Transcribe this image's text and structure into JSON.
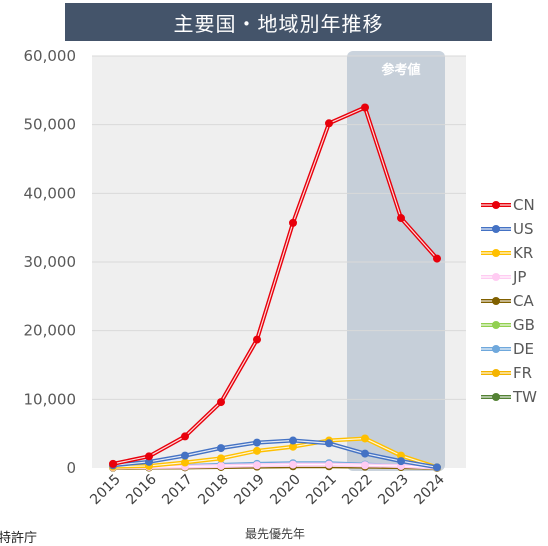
{
  "title": "主要国・地域別年推移",
  "footer_text": "特許庁",
  "chart_data": {
    "type": "line",
    "title": "主要国・地域別年推移",
    "xlabel": "最先優先年",
    "ylabel": "",
    "categories": [
      "2015",
      "2016",
      "2017",
      "2018",
      "2019",
      "2020",
      "2021",
      "2022",
      "2023",
      "2024"
    ],
    "ylim": [
      0,
      60000
    ],
    "yticks": [
      0,
      10000,
      20000,
      30000,
      40000,
      50000,
      60000
    ],
    "ytick_labels": [
      "0",
      "10,000",
      "20,000",
      "30,000",
      "40,000",
      "50,000",
      "60,000"
    ],
    "grid": true,
    "legend_position": "right",
    "reference_region": {
      "label": "参考値",
      "from": "2022",
      "to": "2024"
    },
    "series": [
      {
        "name": "CN",
        "color": "#e8000b",
        "values": [
          600,
          1700,
          4600,
          9600,
          18700,
          35700,
          50200,
          52500,
          36400,
          30500
        ]
      },
      {
        "name": "US",
        "color": "#4472c4",
        "values": [
          400,
          900,
          1800,
          2900,
          3700,
          4000,
          3600,
          2100,
          1000,
          100
        ]
      },
      {
        "name": "KR",
        "color": "#ffc000",
        "values": [
          200,
          300,
          800,
          1400,
          2500,
          3100,
          4000,
          4300,
          1800,
          100
        ]
      },
      {
        "name": "JP",
        "color": "#ffccf2",
        "values": [
          100,
          150,
          200,
          300,
          400,
          500,
          500,
          400,
          300,
          50
        ]
      },
      {
        "name": "CA",
        "color": "#806000",
        "values": [
          50,
          80,
          100,
          150,
          200,
          250,
          250,
          200,
          150,
          20
        ]
      },
      {
        "name": "GB",
        "color": "#92d050",
        "values": [
          80,
          100,
          150,
          200,
          300,
          350,
          350,
          300,
          200,
          30
        ]
      },
      {
        "name": "DE",
        "color": "#6fa8dc",
        "values": [
          150,
          200,
          300,
          450,
          600,
          700,
          700,
          500,
          300,
          50
        ]
      },
      {
        "name": "FR",
        "color": "#f4b400",
        "values": [
          50,
          80,
          120,
          180,
          250,
          300,
          300,
          250,
          150,
          20
        ]
      },
      {
        "name": "TW",
        "color": "#548235",
        "values": [
          50,
          80,
          120,
          180,
          250,
          300,
          300,
          250,
          150,
          20
        ]
      }
    ]
  }
}
